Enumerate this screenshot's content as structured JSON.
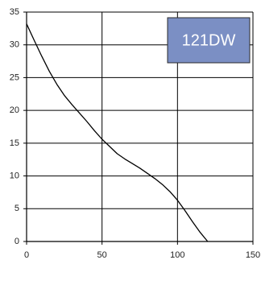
{
  "chart_data": {
    "type": "line",
    "title": "",
    "xlabel": "",
    "ylabel": "",
    "xlim": [
      0,
      150
    ],
    "ylim": [
      0,
      35
    ],
    "x_ticks": [
      0,
      50,
      100,
      150
    ],
    "y_ticks": [
      0,
      5,
      10,
      15,
      20,
      25,
      30,
      35
    ],
    "grid": true,
    "series": [
      {
        "color": "#000000",
        "points": [
          [
            0,
            33.2
          ],
          [
            5,
            30.7
          ],
          [
            10,
            28.3
          ],
          [
            15,
            26.0
          ],
          [
            20,
            24.0
          ],
          [
            25,
            22.3
          ],
          [
            30,
            20.9
          ],
          [
            35,
            19.6
          ],
          [
            40,
            18.3
          ],
          [
            45,
            16.9
          ],
          [
            50,
            15.6
          ],
          [
            55,
            14.5
          ],
          [
            60,
            13.4
          ],
          [
            65,
            12.6
          ],
          [
            70,
            11.9
          ],
          [
            75,
            11.2
          ],
          [
            80,
            10.4
          ],
          [
            85,
            9.6
          ],
          [
            90,
            8.7
          ],
          [
            95,
            7.6
          ],
          [
            100,
            6.3
          ],
          [
            105,
            4.7
          ],
          [
            110,
            3.0
          ],
          [
            115,
            1.4
          ],
          [
            120,
            0
          ]
        ]
      }
    ],
    "annotation": {
      "text": "121DW",
      "fill": "#7b8fc4",
      "text_color": "#ffffff"
    }
  }
}
